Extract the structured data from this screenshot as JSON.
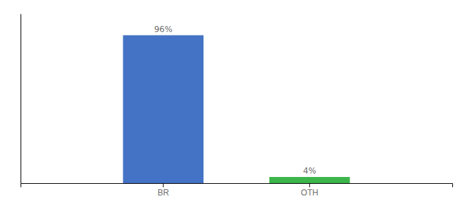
{
  "chart_data": {
    "type": "bar",
    "categories": [
      "BR",
      "OTH"
    ],
    "values": [
      96,
      4
    ],
    "value_labels": [
      "96%",
      "4%"
    ],
    "colors": [
      "#4472c4",
      "#3cb54a"
    ],
    "ylim": [
      0,
      110
    ],
    "data_labels": true,
    "tick_labels": "x"
  }
}
